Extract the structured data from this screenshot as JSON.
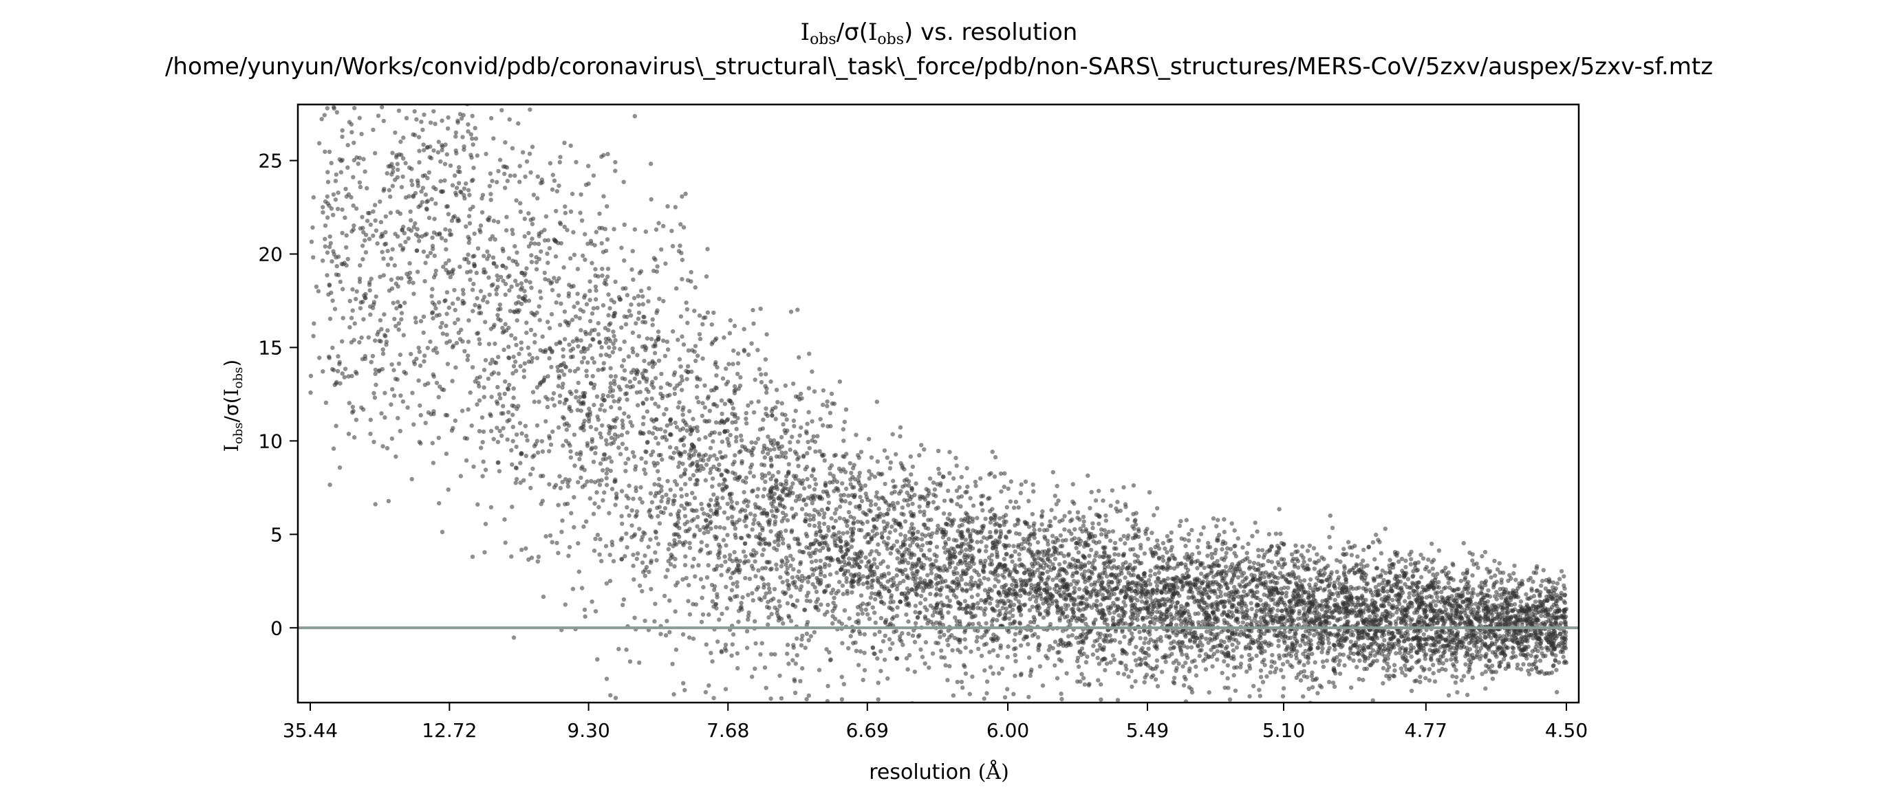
{
  "chart_data": {
    "type": "scatter",
    "title_line1": "vs. resolution",
    "title_path": "/home/yunyun/Works/convid/pdb/coronavirus\\_structural\\_task\\_force/pdb/non-SARS\\_structures/MERS-CoV/5zxv/auspex/5zxv-sf.mtz",
    "xlabel": "resolution",
    "xlabel_unit": "(Å)",
    "ylabel_parts": {
      "I": "I",
      "obs": "obs",
      "sigma": "σ"
    },
    "x_scale": "inverse-square",
    "x_ticks": [
      "35.44",
      "12.72",
      "9.30",
      "7.68",
      "6.69",
      "6.00",
      "5.49",
      "5.10",
      "4.77",
      "4.50"
    ],
    "x_range": [
      35.44,
      4.5
    ],
    "y_ticks": [
      "0",
      "5",
      "10",
      "15",
      "20",
      "25"
    ],
    "ylim": [
      -4,
      28
    ],
    "grid": false,
    "reference_line": {
      "y": 0,
      "color": "#8a9a96"
    },
    "point_color": "#333333",
    "point_opacity": 0.55,
    "approx_point_count": 9000,
    "envelope": [
      {
        "resolution": 35.44,
        "y_mean": 20,
        "y_spread": 9
      },
      {
        "resolution": 12.72,
        "y_mean": 20,
        "y_spread": 10
      },
      {
        "resolution": 9.3,
        "y_mean": 13,
        "y_spread": 10
      },
      {
        "resolution": 7.68,
        "y_mean": 7,
        "y_spread": 8
      },
      {
        "resolution": 6.69,
        "y_mean": 4,
        "y_spread": 5
      },
      {
        "resolution": 6.0,
        "y_mean": 2.5,
        "y_spread": 4
      },
      {
        "resolution": 5.49,
        "y_mean": 1.5,
        "y_spread": 3.5
      },
      {
        "resolution": 5.1,
        "y_mean": 1,
        "y_spread": 3
      },
      {
        "resolution": 4.77,
        "y_mean": 0.5,
        "y_spread": 2.5
      },
      {
        "resolution": 4.5,
        "y_mean": 0.2,
        "y_spread": 2
      }
    ]
  }
}
